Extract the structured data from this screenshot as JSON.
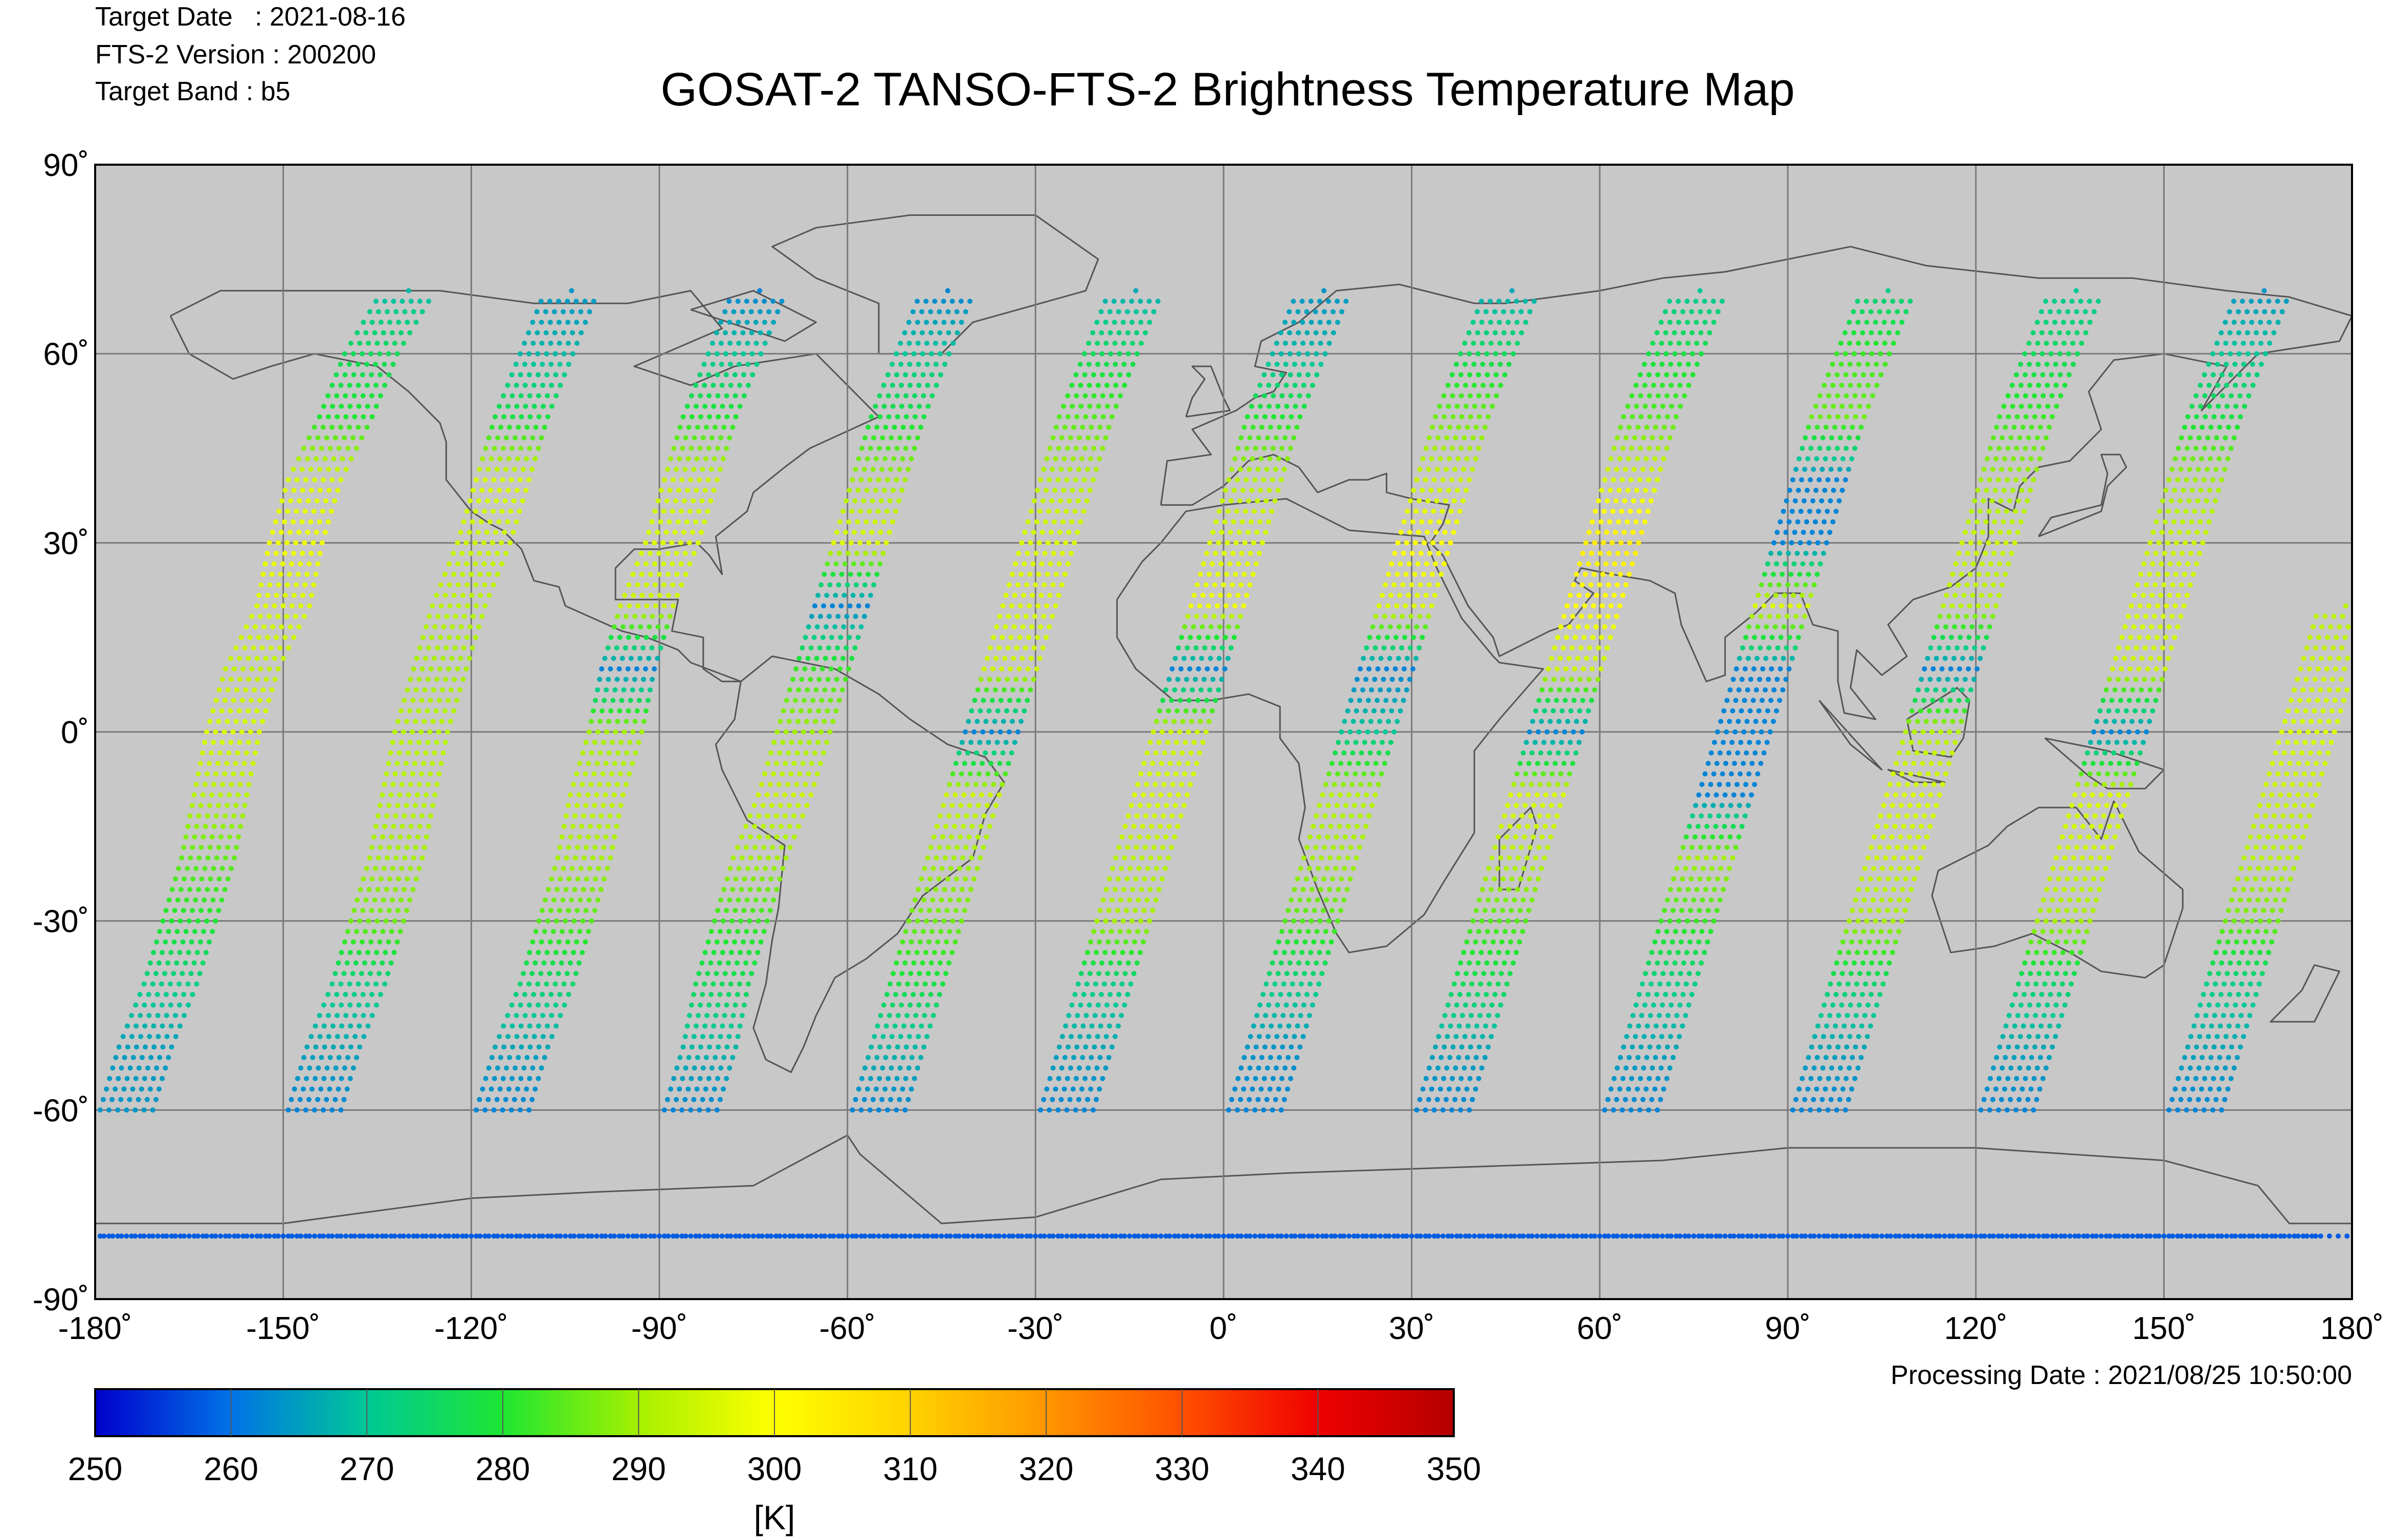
{
  "header": {
    "target_date": "Target Date   : 2021-08-16",
    "version": "FTS-2 Version : 200200",
    "band": "Target Band   : b5"
  },
  "title": "GOSAT-2 TANSO-FTS-2 Brightness Temperature Map",
  "processing_date": "Processing Date : 2021/08/25 10:50:00",
  "map": {
    "background": "#c8c8c8",
    "coast_color": "#555555",
    "grid_color": "#7a7a7a",
    "lon_range": [
      -180,
      180
    ],
    "lat_range": [
      -90,
      90
    ],
    "lon_ticks": [
      "-180˚",
      "-150˚",
      "-120˚",
      "-90˚",
      "-60˚",
      "-30˚",
      "0˚",
      "30˚",
      "60˚",
      "90˚",
      "120˚",
      "150˚",
      "180˚"
    ],
    "lat_ticks": [
      "90˚",
      "60˚",
      "30˚",
      "0˚",
      "-30˚",
      "-60˚",
      "-90˚"
    ]
  },
  "colorbar": {
    "min": 250,
    "max": 350,
    "labels": [
      "250",
      "260",
      "270",
      "280",
      "290",
      "300",
      "310",
      "320",
      "330",
      "340",
      "350"
    ],
    "unit": "[K]",
    "colors": [
      "#0000cd",
      "#0073e6",
      "#00c896",
      "#1ee632",
      "#a5f000",
      "#ffff00",
      "#ffd200",
      "#ff9600",
      "#ff5000",
      "#f00000",
      "#b40000"
    ]
  },
  "chart_data": {
    "type": "scatter",
    "title": "GOSAT-2 TANSO-FTS-2 Brightness Temperature Map",
    "xlabel": "",
    "ylabel": "",
    "xlim": [
      -180,
      180
    ],
    "ylim": [
      -90,
      90
    ],
    "colorscale_unit": "[K]",
    "colorscale_range": [
      250,
      350
    ],
    "series": [
      {
        "values": [
          [
            -175,
            -60,
            264
          ],
          [
            -172,
            -50,
            265
          ],
          [
            -168,
            -40,
            272
          ],
          [
            -165,
            -30,
            280
          ],
          [
            -162,
            -20,
            285
          ],
          [
            -160,
            -10,
            292
          ],
          [
            -158,
            0,
            296
          ],
          [
            -155,
            10,
            293
          ],
          [
            -150,
            20,
            296
          ],
          [
            -148,
            30,
            298
          ],
          [
            -145,
            40,
            296
          ],
          [
            -140,
            50,
            280
          ],
          [
            -136,
            60,
            276
          ],
          [
            -130,
            70,
            268
          ]
        ]
      },
      {
        "values": [
          [
            -145,
            -60,
            262
          ],
          [
            -142,
            -50,
            266
          ],
          [
            -138,
            -40,
            272
          ],
          [
            -135,
            -30,
            286
          ],
          [
            -132,
            -20,
            290
          ],
          [
            -130,
            -10,
            292
          ],
          [
            -128,
            0,
            292
          ],
          [
            -125,
            10,
            290
          ],
          [
            -122,
            20,
            292
          ],
          [
            -118,
            30,
            294
          ],
          [
            -115,
            40,
            296
          ],
          [
            -112,
            50,
            278
          ],
          [
            -108,
            60,
            268
          ],
          [
            -104,
            70,
            264
          ]
        ]
      },
      {
        "values": [
          [
            -115,
            -60,
            262
          ],
          [
            -112,
            -50,
            266
          ],
          [
            -108,
            -40,
            274
          ],
          [
            -105,
            -30,
            284
          ],
          [
            -102,
            -20,
            290
          ],
          [
            -100,
            -10,
            293
          ],
          [
            -97,
            0,
            290
          ],
          [
            -95,
            10,
            262
          ],
          [
            -92,
            20,
            294
          ],
          [
            -88,
            30,
            296
          ],
          [
            -85,
            40,
            294
          ],
          [
            -82,
            50,
            280
          ],
          [
            -78,
            60,
            270
          ],
          [
            -74,
            70,
            262
          ]
        ]
      },
      {
        "values": [
          [
            -85,
            -60,
            262
          ],
          [
            -82,
            -50,
            268
          ],
          [
            -80,
            -40,
            276
          ],
          [
            -77,
            -30,
            282
          ],
          [
            -74,
            -20,
            290
          ],
          [
            -70,
            -10,
            294
          ],
          [
            -67,
            0,
            290
          ],
          [
            -64,
            10,
            282
          ],
          [
            -61,
            20,
            262
          ],
          [
            -58,
            30,
            296
          ],
          [
            -55,
            40,
            290
          ],
          [
            -52,
            50,
            278
          ],
          [
            -48,
            60,
            270
          ],
          [
            -44,
            70,
            262
          ]
        ]
      },
      {
        "values": [
          [
            -55,
            -60,
            262
          ],
          [
            -52,
            -50,
            268
          ],
          [
            -49,
            -40,
            278
          ],
          [
            -46,
            -30,
            286
          ],
          [
            -43,
            -20,
            290
          ],
          [
            -40,
            -10,
            294
          ],
          [
            -37,
            0,
            262
          ],
          [
            -34,
            10,
            294
          ],
          [
            -31,
            20,
            296
          ],
          [
            -28,
            30,
            296
          ],
          [
            -25,
            40,
            292
          ],
          [
            -22,
            50,
            284
          ],
          [
            -18,
            60,
            276
          ],
          [
            -14,
            70,
            266
          ]
        ]
      },
      {
        "values": [
          [
            -25,
            -60,
            262
          ],
          [
            -22,
            -50,
            266
          ],
          [
            -19,
            -40,
            272
          ],
          [
            -16,
            -30,
            290
          ],
          [
            -13,
            -20,
            292
          ],
          [
            -10,
            -10,
            296
          ],
          [
            -7,
            0,
            294
          ],
          [
            -4,
            10,
            262
          ],
          [
            -1,
            20,
            298
          ],
          [
            2,
            30,
            296
          ],
          [
            5,
            40,
            292
          ],
          [
            8,
            50,
            280
          ],
          [
            12,
            60,
            268
          ],
          [
            16,
            70,
            264
          ]
        ]
      },
      {
        "values": [
          [
            5,
            -60,
            262
          ],
          [
            8,
            -50,
            264
          ],
          [
            11,
            -40,
            272
          ],
          [
            14,
            -30,
            284
          ],
          [
            17,
            -20,
            290
          ],
          [
            20,
            -10,
            292
          ],
          [
            23,
            0,
            270
          ],
          [
            26,
            10,
            262
          ],
          [
            29,
            20,
            296
          ],
          [
            32,
            30,
            300
          ],
          [
            35,
            40,
            294
          ],
          [
            38,
            50,
            286
          ],
          [
            42,
            60,
            276
          ],
          [
            46,
            70,
            266
          ]
        ]
      },
      {
        "values": [
          [
            35,
            -60,
            262
          ],
          [
            38,
            -50,
            266
          ],
          [
            41,
            -40,
            276
          ],
          [
            44,
            -30,
            284
          ],
          [
            47,
            -20,
            292
          ],
          [
            50,
            -10,
            296
          ],
          [
            53,
            0,
            262
          ],
          [
            56,
            10,
            294
          ],
          [
            59,
            20,
            300
          ],
          [
            62,
            30,
            304
          ],
          [
            65,
            40,
            296
          ],
          [
            68,
            50,
            284
          ],
          [
            72,
            60,
            278
          ],
          [
            76,
            70,
            270
          ]
        ]
      },
      {
        "values": [
          [
            65,
            -60,
            262
          ],
          [
            68,
            -50,
            266
          ],
          [
            71,
            -40,
            272
          ],
          [
            74,
            -30,
            282
          ],
          [
            77,
            -20,
            290
          ],
          [
            80,
            -10,
            262
          ],
          [
            83,
            0,
            262
          ],
          [
            86,
            10,
            262
          ],
          [
            89,
            20,
            296
          ],
          [
            92,
            30,
            262
          ],
          [
            95,
            40,
            262
          ],
          [
            98,
            50,
            286
          ],
          [
            102,
            60,
            282
          ],
          [
            106,
            70,
            272
          ]
        ]
      },
      {
        "values": [
          [
            95,
            -60,
            262
          ],
          [
            98,
            -50,
            266
          ],
          [
            101,
            -40,
            274
          ],
          [
            104,
            -30,
            290
          ],
          [
            107,
            -20,
            294
          ],
          [
            110,
            -10,
            296
          ],
          [
            113,
            0,
            292
          ],
          [
            116,
            10,
            262
          ],
          [
            119,
            20,
            292
          ],
          [
            122,
            30,
            294
          ],
          [
            125,
            40,
            290
          ],
          [
            128,
            50,
            282
          ],
          [
            132,
            60,
            276
          ],
          [
            136,
            70,
            270
          ]
        ]
      },
      {
        "values": [
          [
            125,
            -60,
            262
          ],
          [
            128,
            -50,
            266
          ],
          [
            131,
            -40,
            274
          ],
          [
            134,
            -30,
            290
          ],
          [
            137,
            -20,
            294
          ],
          [
            140,
            -10,
            296
          ],
          [
            143,
            0,
            262
          ],
          [
            146,
            10,
            294
          ],
          [
            149,
            20,
            296
          ],
          [
            152,
            30,
            294
          ],
          [
            155,
            40,
            290
          ],
          [
            158,
            50,
            278
          ],
          [
            162,
            60,
            270
          ],
          [
            166,
            70,
            264
          ]
        ]
      },
      {
        "values": [
          [
            155,
            -60,
            262
          ],
          [
            158,
            -50,
            266
          ],
          [
            161,
            -40,
            272
          ],
          [
            164,
            -30,
            286
          ],
          [
            167,
            -20,
            292
          ],
          [
            170,
            -10,
            294
          ],
          [
            173,
            0,
            296
          ],
          [
            176,
            10,
            294
          ],
          [
            179,
            20,
            292
          ]
        ]
      },
      {
        "values": [
          [
            -180,
            -80,
            258
          ],
          [
            -150,
            -80,
            258
          ],
          [
            -120,
            -80,
            258
          ],
          [
            -90,
            -80,
            258
          ],
          [
            -60,
            -80,
            258
          ],
          [
            -30,
            -80,
            258
          ],
          [
            0,
            -80,
            258
          ],
          [
            30,
            -80,
            258
          ],
          [
            60,
            -80,
            258
          ],
          [
            90,
            -80,
            258
          ],
          [
            120,
            -80,
            258
          ],
          [
            150,
            -80,
            258
          ],
          [
            180,
            -80,
            258
          ]
        ]
      }
    ]
  }
}
